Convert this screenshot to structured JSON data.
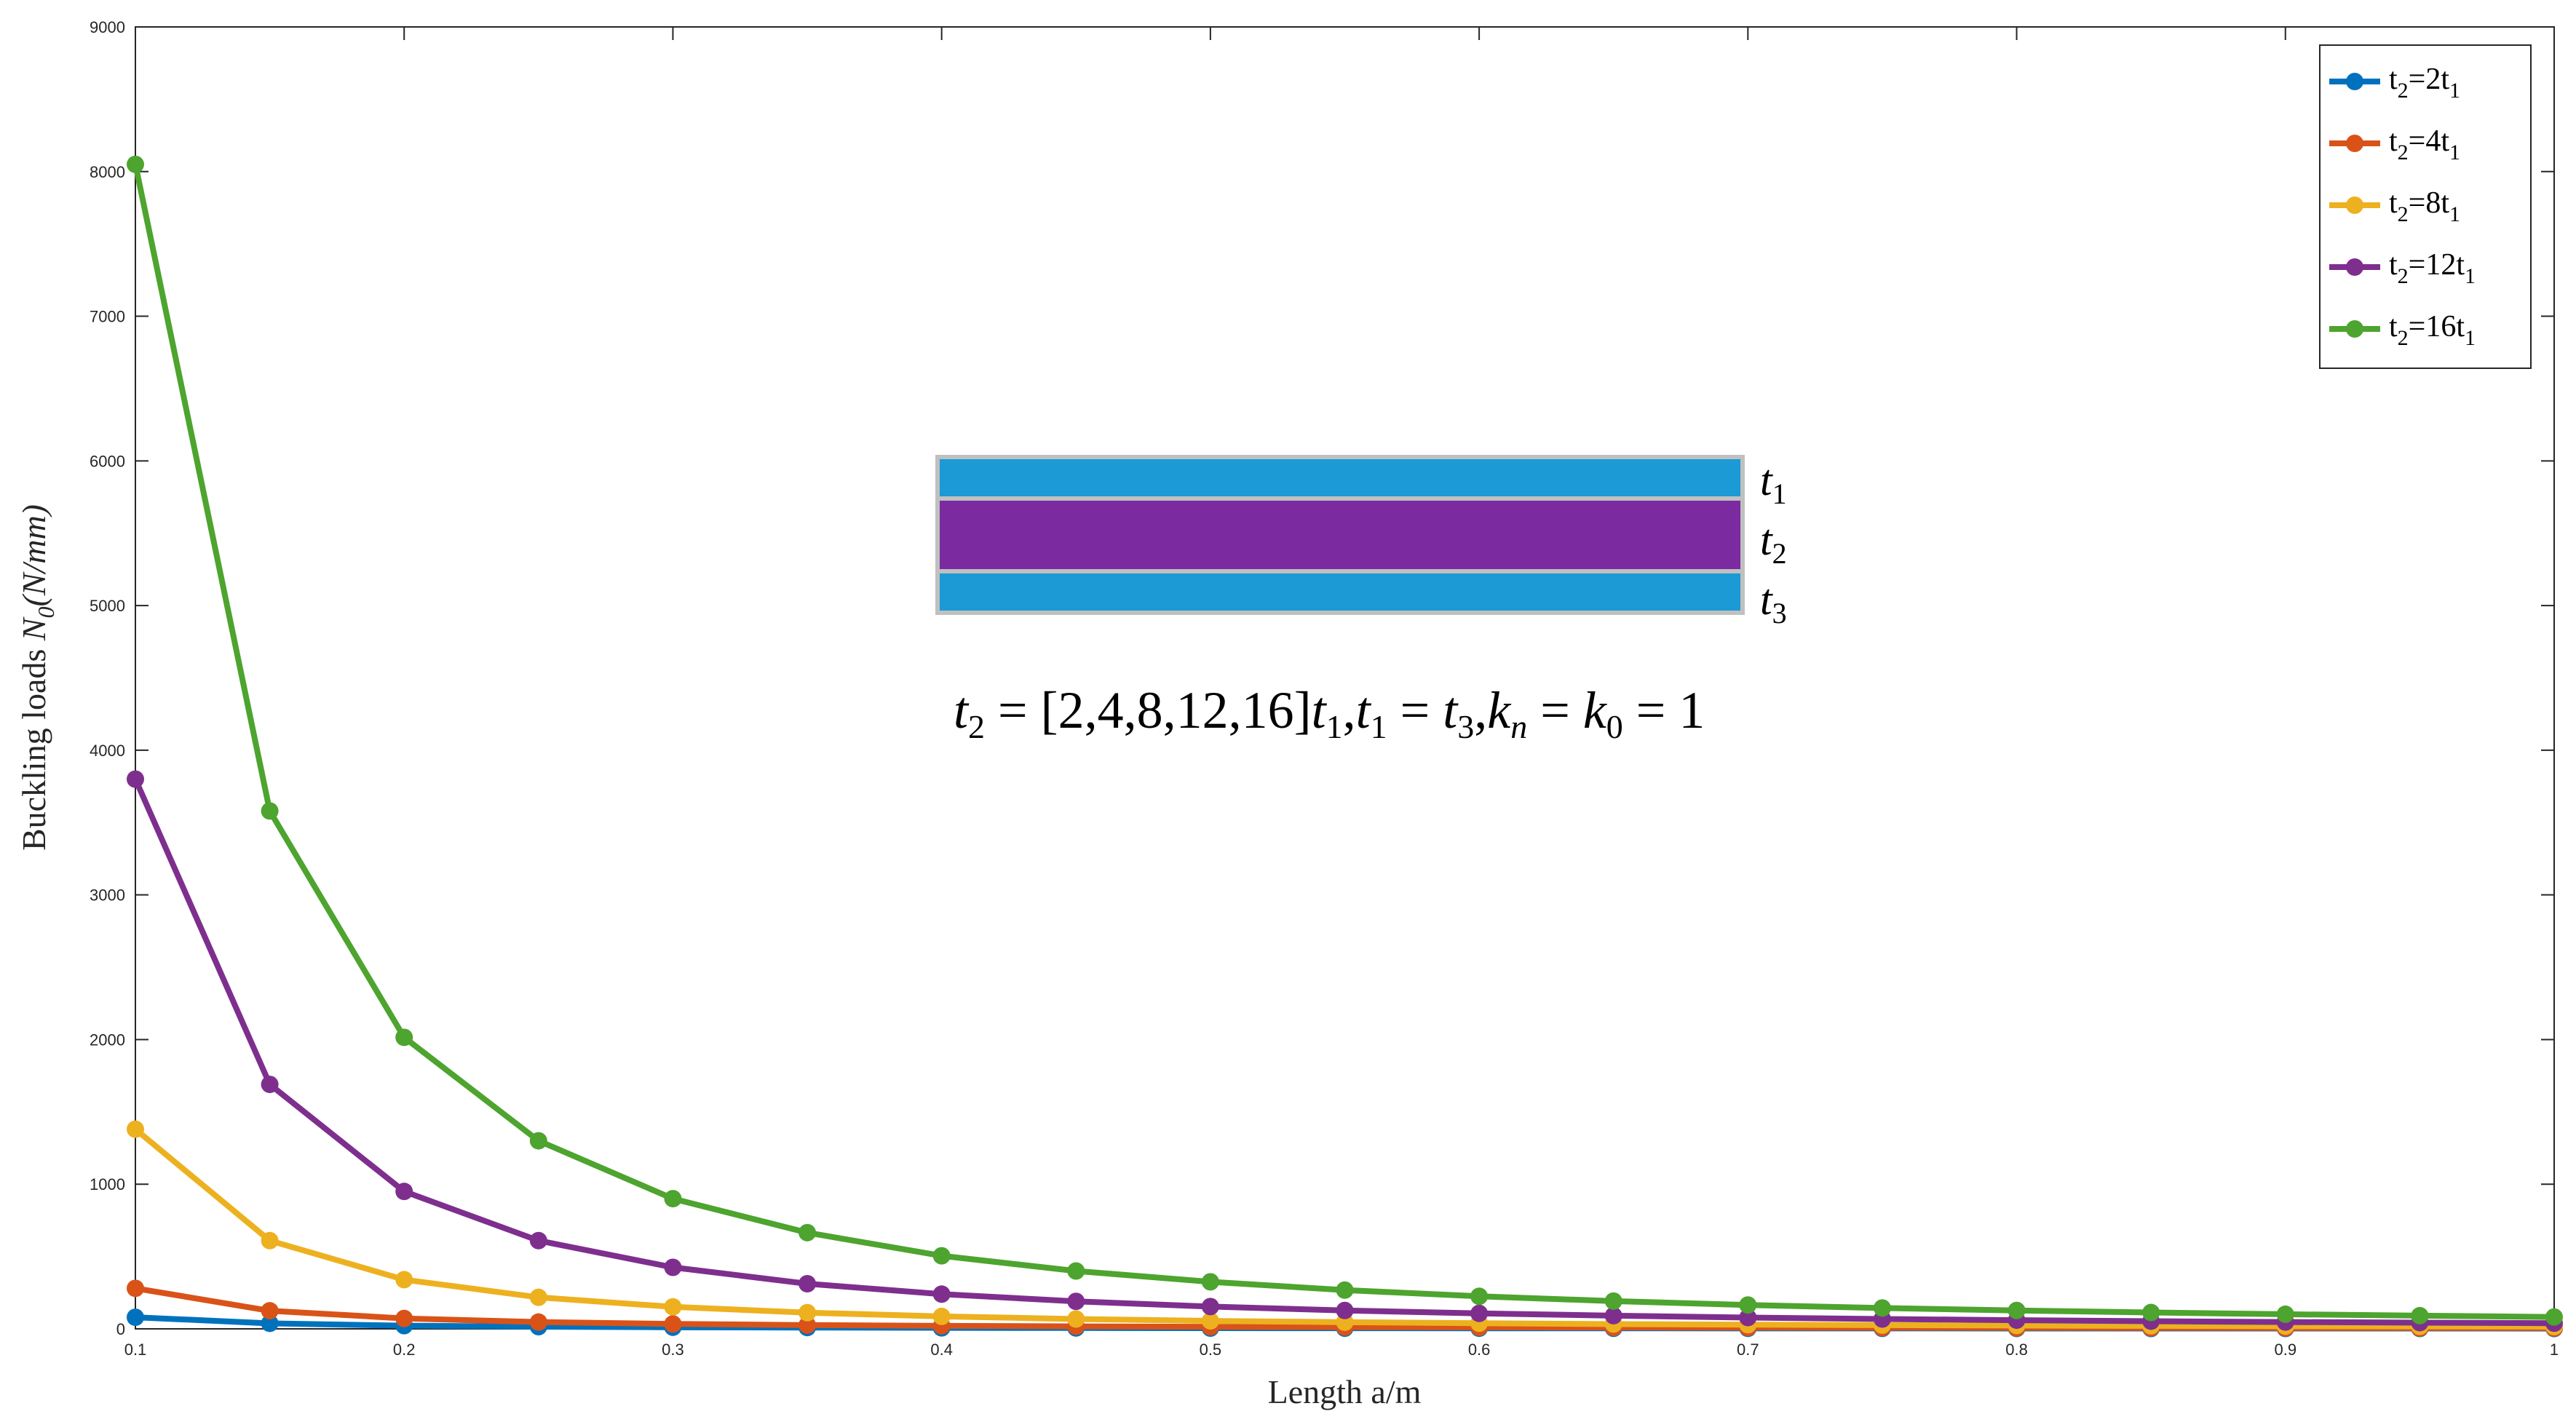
{
  "chart_data": {
    "type": "line",
    "title": "",
    "xlabel": "Length a/m",
    "ylabel_parts": {
      "main": "Buckling loads ",
      "symbol": "N",
      "sub": "0",
      "unit": "(N/mm)"
    },
    "xlim": [
      0.1,
      1.0
    ],
    "ylim": [
      0,
      9000
    ],
    "xticks": [
      0.1,
      0.2,
      0.3,
      0.4,
      0.5,
      0.6,
      0.7,
      0.8,
      0.9,
      1.0
    ],
    "xtick_labels": [
      "0.1",
      "0.2",
      "0.3",
      "0.4",
      "0.5",
      "0.6",
      "0.7",
      "0.8",
      "0.9",
      "1"
    ],
    "yticks": [
      0,
      1000,
      2000,
      3000,
      4000,
      5000,
      6000,
      7000,
      8000,
      9000
    ],
    "ytick_labels": [
      "0",
      "1000",
      "2000",
      "3000",
      "4000",
      "5000",
      "6000",
      "7000",
      "8000",
      "9000"
    ],
    "grid": false,
    "legend_position": "top-right",
    "x": [
      0.1,
      0.15,
      0.2,
      0.25,
      0.3,
      0.35,
      0.4,
      0.45,
      0.5,
      0.55,
      0.6,
      0.65,
      0.7,
      0.75,
      0.8,
      0.85,
      0.9,
      0.95,
      1.0
    ],
    "series": [
      {
        "name": "t2=2t1",
        "label_parts": {
          "a": "t",
          "a_sub": "2",
          "mid": "=2t",
          "b_sub": "1"
        },
        "color": "#0072BD",
        "values": [
          80,
          38,
          22,
          15,
          11,
          9,
          7,
          6,
          5,
          4.5,
          4,
          3.6,
          3.3,
          3,
          2.8,
          2.6,
          2.4,
          2.3,
          2.2
        ]
      },
      {
        "name": "t2=4t1",
        "label_parts": {
          "a": "t",
          "a_sub": "2",
          "mid": "=4t",
          "b_sub": "1"
        },
        "color": "#D95319",
        "values": [
          280,
          125,
          72,
          47,
          34,
          26,
          21,
          17,
          14,
          12,
          10.5,
          9.3,
          8.4,
          7.6,
          7,
          6.5,
          6,
          5.6,
          5.3
        ]
      },
      {
        "name": "t2=8t1",
        "label_parts": {
          "a": "t",
          "a_sub": "2",
          "mid": "=8t",
          "b_sub": "1"
        },
        "color": "#EDB120",
        "values": [
          1380,
          610,
          340,
          218,
          152,
          112,
          86,
          68,
          55,
          46,
          39,
          33,
          29,
          25.5,
          23,
          20.5,
          18.5,
          17,
          15.5
        ]
      },
      {
        "name": "t2=12t1",
        "label_parts": {
          "a": "t",
          "a_sub": "2",
          "mid": "=12t",
          "b_sub": "1"
        },
        "color": "#7E2F8E",
        "values": [
          3800,
          1690,
          950,
          610,
          425,
          312,
          240,
          190,
          154,
          127,
          107,
          91,
          78,
          68,
          60,
          53,
          47,
          43,
          39
        ]
      },
      {
        "name": "t2=16t1",
        "label_parts": {
          "a": "t",
          "a_sub": "2",
          "mid": "=16t",
          "b_sub": "1"
        },
        "color": "#4DA42E",
        "values": [
          8050,
          3580,
          2015,
          1300,
          900,
          665,
          505,
          400,
          325,
          268,
          225,
          192,
          165,
          144,
          127,
          113,
          101,
          91,
          82
        ]
      }
    ],
    "inset": {
      "layer_labels": [
        {
          "symbol": "t",
          "sub": "1"
        },
        {
          "symbol": "t",
          "sub": "2"
        },
        {
          "symbol": "t",
          "sub": "3"
        }
      ],
      "layer_colors": [
        "#1B9AD6",
        "#7B2AA0",
        "#1B9AD6"
      ],
      "formula": "t2 = [2,4,8,12,16]t1, t1 = t3, kn = k0 = 1"
    }
  }
}
